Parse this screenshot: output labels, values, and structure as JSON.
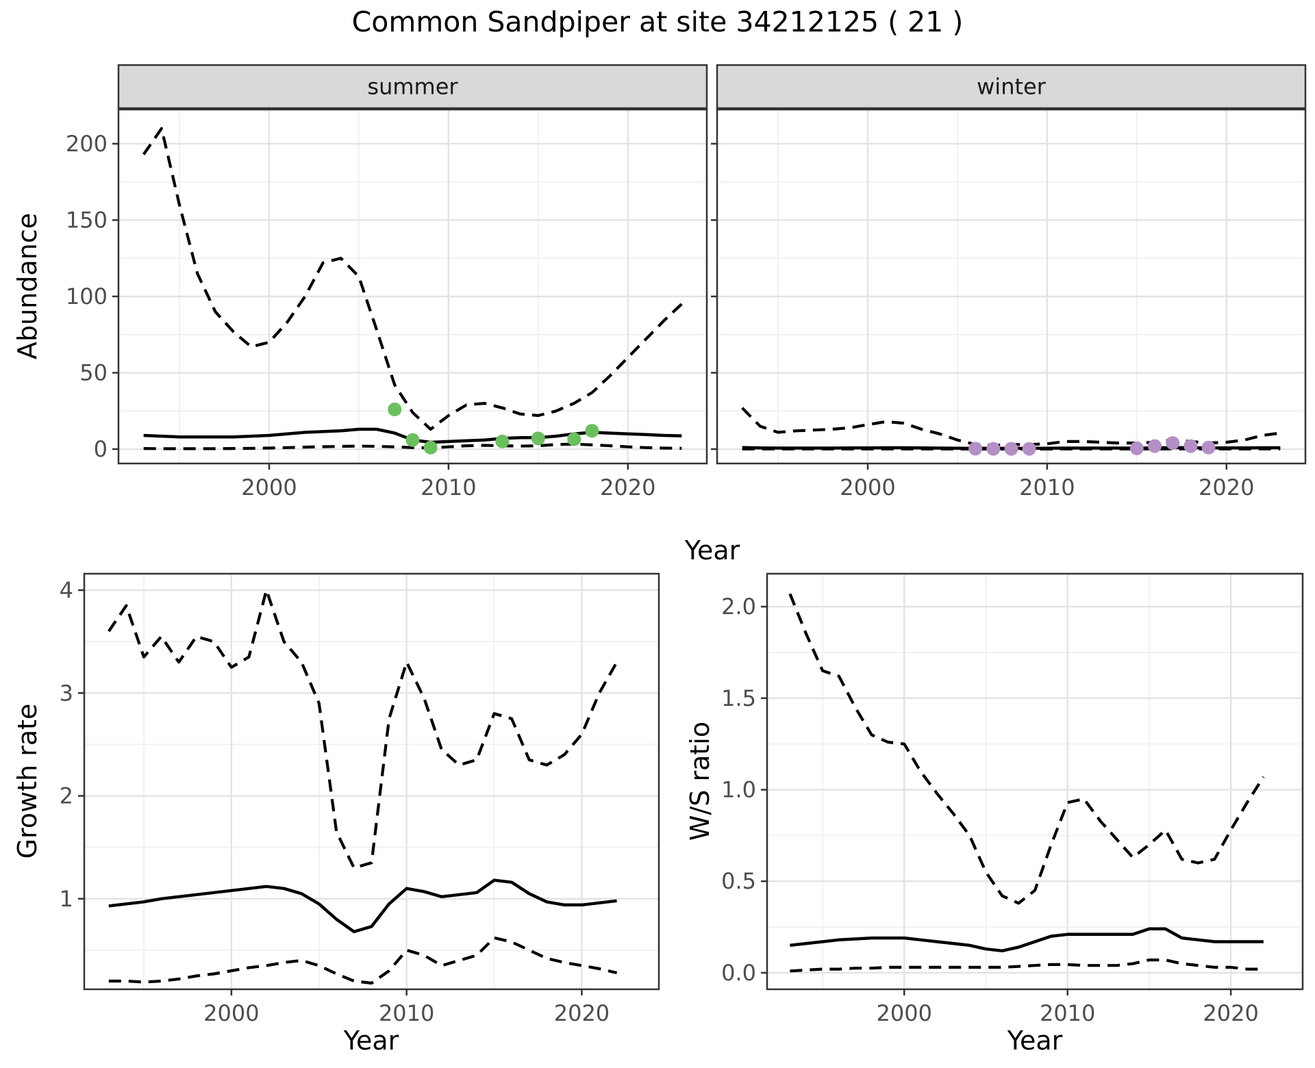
{
  "title": "Common Sandpiper at site 34212125 ( 21 )",
  "colors": {
    "summer_points": "#6cbf5f",
    "winter_points": "#b38fc6",
    "line": "#000000",
    "strip_fill": "#d9d9d9",
    "strip_text": "#1a1a1a",
    "panel_border": "#333333",
    "grid_major": "#e3e3e3",
    "grid_minor": "#f1f1f1",
    "axis_text": "#4d4d4d"
  },
  "shared_axis": {
    "x_label_top": "Year",
    "y_label_top": "Abundance"
  },
  "chart_data": [
    {
      "id": "abundance-summer",
      "type": "line",
      "facet_label": "summer",
      "xlabel": "Year",
      "ylabel": "Abundance",
      "xlim": [
        1991.6,
        2024.4
      ],
      "ylim": [
        -9.4,
        222.4
      ],
      "x_ticks": [
        2000,
        2010,
        2020
      ],
      "x_minor": [
        1995,
        2005,
        2015
      ],
      "y_ticks": [
        0,
        50,
        100,
        150,
        200
      ],
      "y_tick_labels": [
        "0",
        "50",
        "100",
        "150",
        "200"
      ],
      "y_minor": [
        25,
        75,
        125,
        175
      ],
      "grid": true,
      "legend": "none",
      "years": [
        1993,
        1994,
        1995,
        1996,
        1997,
        1998,
        1999,
        2000,
        2001,
        2002,
        2003,
        2004,
        2005,
        2006,
        2007,
        2008,
        2009,
        2010,
        2011,
        2012,
        2013,
        2014,
        2015,
        2016,
        2017,
        2018,
        2019,
        2020,
        2021,
        2022,
        2023
      ],
      "series": [
        {
          "name": "upper_ci",
          "style": "dashed",
          "values": [
            193,
            210,
            160,
            115,
            90,
            77,
            67,
            70,
            83,
            100,
            122,
            125,
            113,
            78,
            42,
            24,
            13,
            22,
            29,
            30,
            27,
            23,
            22,
            25,
            30,
            37,
            48,
            60,
            72,
            84,
            95
          ]
        },
        {
          "name": "median",
          "style": "solid",
          "values": [
            9,
            8.5,
            8,
            8,
            8,
            8,
            8.5,
            9,
            10,
            11,
            11.5,
            12,
            13,
            13,
            10.5,
            6,
            4.5,
            5,
            5.5,
            6,
            7,
            7.5,
            7.5,
            8.5,
            10,
            11,
            10.5,
            10,
            9.5,
            9,
            8.7
          ]
        },
        {
          "name": "lower_ci",
          "style": "dashed",
          "values": [
            0.4,
            0.3,
            0.3,
            0.3,
            0.3,
            0.4,
            0.5,
            0.7,
            1,
            1.3,
            1.6,
            1.8,
            2,
            1.8,
            1.5,
            1,
            0.8,
            1.5,
            2.2,
            2.5,
            2.2,
            2,
            2.2,
            3,
            3.3,
            2.8,
            2.2,
            1.5,
            1,
            0.7,
            0.5
          ]
        }
      ],
      "points": {
        "name": "observed_counts",
        "color": "#6cbf5f",
        "data": [
          [
            2007,
            26
          ],
          [
            2008,
            6
          ],
          [
            2009,
            1
          ],
          [
            2013,
            5
          ],
          [
            2015,
            7
          ],
          [
            2017,
            6.5
          ],
          [
            2018,
            12
          ]
        ]
      }
    },
    {
      "id": "abundance-winter",
      "type": "line",
      "facet_label": "winter",
      "xlabel": "Year",
      "ylabel": "Abundance",
      "xlim": [
        1991.6,
        2024.4
      ],
      "ylim": [
        -9.4,
        222.4
      ],
      "x_ticks": [
        2000,
        2010,
        2020
      ],
      "x_minor": [
        1995,
        2005,
        2015
      ],
      "y_ticks": [
        0,
        50,
        100,
        150,
        200
      ],
      "y_tick_labels": [
        "0",
        "50",
        "100",
        "150",
        "200"
      ],
      "y_minor": [
        25,
        75,
        125,
        175
      ],
      "grid": true,
      "legend": "none",
      "years": [
        1993,
        1994,
        1995,
        1996,
        1997,
        1998,
        1999,
        2000,
        2001,
        2002,
        2003,
        2004,
        2005,
        2006,
        2007,
        2008,
        2009,
        2010,
        2011,
        2012,
        2013,
        2014,
        2015,
        2016,
        2017,
        2018,
        2019,
        2020,
        2021,
        2022,
        2023
      ],
      "series": [
        {
          "name": "upper_ci",
          "style": "dashed",
          "values": [
            27,
            15,
            11,
            12,
            12.5,
            13,
            14,
            16,
            18,
            17,
            13,
            10,
            6,
            3,
            2.5,
            3,
            3,
            3.5,
            5,
            5,
            4.5,
            4,
            4,
            4.5,
            6,
            5,
            4,
            4.5,
            6,
            9,
            10.5
          ]
        },
        {
          "name": "median",
          "style": "solid",
          "values": [
            1,
            0.8,
            0.7,
            0.7,
            0.7,
            0.7,
            0.8,
            0.8,
            0.9,
            0.9,
            0.8,
            0.7,
            0.6,
            0.5,
            0.5,
            0.5,
            0.5,
            0.6,
            0.7,
            0.7,
            0.7,
            0.7,
            0.7,
            0.8,
            1,
            0.9,
            0.8,
            0.8,
            0.8,
            0.9,
            0.9
          ]
        },
        {
          "name": "lower_ci",
          "style": "dashed",
          "values": [
            0.1,
            0.1,
            0.1,
            0.1,
            0.1,
            0.1,
            0.1,
            0.1,
            0.1,
            0.1,
            0.1,
            0.1,
            0.05,
            0.05,
            0.05,
            0.05,
            0.05,
            0.05,
            0.1,
            0.1,
            0.1,
            0.1,
            0.1,
            0.1,
            0.15,
            0.1,
            0.1,
            0.1,
            0.1,
            0.15,
            0.15
          ]
        }
      ],
      "points": {
        "name": "observed_counts",
        "color": "#b38fc6",
        "data": [
          [
            2006,
            0.3
          ],
          [
            2007,
            0.2
          ],
          [
            2008,
            0.2
          ],
          [
            2009,
            0.2
          ],
          [
            2015,
            0.5
          ],
          [
            2016,
            2
          ],
          [
            2017,
            4
          ],
          [
            2018,
            2
          ],
          [
            2019,
            1
          ]
        ]
      }
    },
    {
      "id": "growth-rate",
      "type": "line",
      "facet_label": "",
      "xlabel": "Year",
      "ylabel": "Growth rate",
      "xlim": [
        1991.6,
        2024.4
      ],
      "ylim": [
        0.12,
        4.16
      ],
      "x_ticks": [
        2000,
        2010,
        2020
      ],
      "x_minor": [
        1995,
        2005,
        2015
      ],
      "y_ticks": [
        1,
        2,
        3,
        4
      ],
      "y_tick_labels": [
        "1",
        "2",
        "3",
        "4"
      ],
      "y_minor": [
        0.5,
        1.5,
        2.5,
        3.5
      ],
      "grid": true,
      "legend": "none",
      "years": [
        1993,
        1994,
        1995,
        1996,
        1997,
        1998,
        1999,
        2000,
        2001,
        2002,
        2003,
        2004,
        2005,
        2006,
        2007,
        2008,
        2009,
        2010,
        2011,
        2012,
        2013,
        2014,
        2015,
        2016,
        2017,
        2018,
        2019,
        2020,
        2021,
        2022
      ],
      "series": [
        {
          "name": "upper_ci",
          "style": "dashed",
          "values": [
            3.6,
            3.85,
            3.35,
            3.55,
            3.3,
            3.55,
            3.5,
            3.25,
            3.35,
            4,
            3.5,
            3.3,
            2.9,
            1.65,
            1.3,
            1.35,
            2.75,
            3.3,
            2.95,
            2.45,
            2.3,
            2.35,
            2.8,
            2.75,
            2.35,
            2.3,
            2.4,
            2.6,
            3,
            3.3
          ]
        },
        {
          "name": "median",
          "style": "solid",
          "values": [
            0.93,
            0.95,
            0.97,
            1,
            1.02,
            1.04,
            1.06,
            1.08,
            1.1,
            1.12,
            1.1,
            1.05,
            0.95,
            0.8,
            0.68,
            0.73,
            0.95,
            1.1,
            1.07,
            1.02,
            1.04,
            1.06,
            1.18,
            1.16,
            1.05,
            0.97,
            0.94,
            0.94,
            0.96,
            0.98
          ]
        },
        {
          "name": "lower_ci",
          "style": "dashed",
          "values": [
            0.2,
            0.2,
            0.19,
            0.2,
            0.22,
            0.25,
            0.27,
            0.3,
            0.33,
            0.35,
            0.38,
            0.4,
            0.35,
            0.27,
            0.2,
            0.18,
            0.3,
            0.5,
            0.45,
            0.35,
            0.4,
            0.45,
            0.62,
            0.58,
            0.5,
            0.42,
            0.38,
            0.35,
            0.32,
            0.28
          ]
        }
      ],
      "points": null
    },
    {
      "id": "ws-ratio",
      "type": "line",
      "facet_label": "",
      "xlabel": "Year",
      "ylabel": "W/S ratio",
      "xlim": [
        1991.6,
        2024.4
      ],
      "ylim": [
        -0.09,
        2.18
      ],
      "x_ticks": [
        2000,
        2010,
        2020
      ],
      "x_minor": [
        1995,
        2005,
        2015
      ],
      "y_ticks": [
        0.0,
        0.5,
        1.0,
        1.5,
        2.0
      ],
      "y_tick_labels": [
        "0.0",
        "0.5",
        "1.0",
        "1.5",
        "2.0"
      ],
      "y_minor": [
        0.25,
        0.75,
        1.25,
        1.75
      ],
      "grid": true,
      "legend": "none",
      "years": [
        1993,
        1994,
        1995,
        1996,
        1997,
        1998,
        1999,
        2000,
        2001,
        2002,
        2003,
        2004,
        2005,
        2006,
        2007,
        2008,
        2009,
        2010,
        2011,
        2012,
        2013,
        2014,
        2015,
        2016,
        2017,
        2018,
        2019,
        2020,
        2021,
        2022
      ],
      "series": [
        {
          "name": "upper_ci",
          "style": "dashed",
          "values": [
            2.07,
            1.85,
            1.65,
            1.62,
            1.45,
            1.3,
            1.26,
            1.25,
            1.1,
            0.98,
            0.87,
            0.75,
            0.55,
            0.42,
            0.38,
            0.45,
            0.7,
            0.93,
            0.95,
            0.83,
            0.73,
            0.63,
            0.7,
            0.78,
            0.62,
            0.6,
            0.62,
            0.78,
            0.93,
            1.07
          ]
        },
        {
          "name": "median",
          "style": "solid",
          "values": [
            0.15,
            0.16,
            0.17,
            0.18,
            0.185,
            0.19,
            0.19,
            0.19,
            0.18,
            0.17,
            0.16,
            0.15,
            0.13,
            0.12,
            0.14,
            0.17,
            0.2,
            0.21,
            0.21,
            0.21,
            0.21,
            0.21,
            0.24,
            0.24,
            0.19,
            0.18,
            0.17,
            0.17,
            0.17,
            0.17
          ]
        },
        {
          "name": "lower_ci",
          "style": "dashed",
          "values": [
            0.01,
            0.015,
            0.02,
            0.02,
            0.025,
            0.025,
            0.03,
            0.03,
            0.03,
            0.03,
            0.03,
            0.03,
            0.03,
            0.03,
            0.035,
            0.04,
            0.045,
            0.045,
            0.04,
            0.04,
            0.04,
            0.05,
            0.07,
            0.07,
            0.05,
            0.04,
            0.03,
            0.03,
            0.02,
            0.02
          ]
        }
      ],
      "points": null
    }
  ]
}
